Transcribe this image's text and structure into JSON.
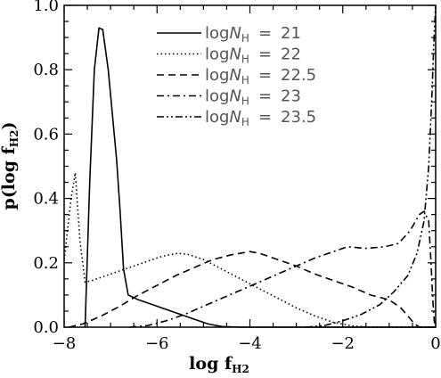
{
  "chart_data": {
    "type": "line",
    "xlabel": "log f",
    "xlabel_sub": "H2",
    "ylabel": "p(log f",
    "ylabel_sub": "H2",
    "ylabel_close": ")",
    "xlim": [
      -8,
      0
    ],
    "ylim": [
      0,
      1.0
    ],
    "x_ticks": [
      -8,
      -6,
      -4,
      -2,
      0
    ],
    "x_tick_labels": [
      "−8",
      "−6",
      "−4",
      "−2",
      "0"
    ],
    "y_ticks": [
      0.0,
      0.2,
      0.4,
      0.6,
      0.8,
      1.0
    ],
    "y_tick_labels": [
      "0.0",
      "0.2",
      "0.4",
      "0.6",
      "0.8",
      "1.0"
    ],
    "grid": false,
    "legend_position": "top-center",
    "series": [
      {
        "name": "21",
        "legend_prefix": "log",
        "legend_var": "N",
        "legend_sub": "H",
        "legend_eq": "=",
        "dash": "solid",
        "points": [
          [
            -7.55,
            0.0
          ],
          [
            -7.45,
            0.45
          ],
          [
            -7.35,
            0.8
          ],
          [
            -7.25,
            0.93
          ],
          [
            -7.17,
            0.925
          ],
          [
            -7.05,
            0.8
          ],
          [
            -6.87,
            0.52
          ],
          [
            -6.8,
            0.37
          ],
          [
            -6.72,
            0.18
          ],
          [
            -6.62,
            0.1
          ],
          [
            -6.4,
            0.085
          ],
          [
            -6.0,
            0.065
          ],
          [
            -5.6,
            0.045
          ],
          [
            -5.2,
            0.025
          ],
          [
            -4.9,
            0.01
          ],
          [
            -4.6,
            0.002
          ],
          [
            -4.2,
            0.0
          ],
          [
            -2.0,
            0.0
          ],
          [
            0.0,
            0.0
          ]
        ]
      },
      {
        "name": "22",
        "legend_prefix": "log",
        "legend_var": "N",
        "legend_sub": "H",
        "legend_eq": "=",
        "dash": "dotted",
        "points": [
          [
            -8.0,
            0.21
          ],
          [
            -7.85,
            0.4
          ],
          [
            -7.76,
            0.48
          ],
          [
            -7.66,
            0.27
          ],
          [
            -7.55,
            0.14
          ],
          [
            -7.4,
            0.145
          ],
          [
            -7.1,
            0.16
          ],
          [
            -6.7,
            0.18
          ],
          [
            -6.3,
            0.2
          ],
          [
            -5.9,
            0.22
          ],
          [
            -5.55,
            0.23
          ],
          [
            -5.3,
            0.225
          ],
          [
            -5.0,
            0.21
          ],
          [
            -4.6,
            0.18
          ],
          [
            -4.2,
            0.15
          ],
          [
            -3.8,
            0.12
          ],
          [
            -3.4,
            0.09
          ],
          [
            -3.0,
            0.06
          ],
          [
            -2.6,
            0.035
          ],
          [
            -2.2,
            0.015
          ],
          [
            -1.8,
            0.004
          ],
          [
            -1.4,
            0.0
          ],
          [
            0.0,
            0.0
          ]
        ]
      },
      {
        "name": "22.5",
        "legend_prefix": "log",
        "legend_var": "N",
        "legend_sub": "H",
        "legend_eq": "=",
        "dash": "dashed",
        "points": [
          [
            -7.9,
            0.0
          ],
          [
            -7.6,
            0.01
          ],
          [
            -7.2,
            0.035
          ],
          [
            -6.8,
            0.065
          ],
          [
            -6.4,
            0.1
          ],
          [
            -6.0,
            0.13
          ],
          [
            -5.6,
            0.16
          ],
          [
            -5.2,
            0.185
          ],
          [
            -4.8,
            0.21
          ],
          [
            -4.4,
            0.225
          ],
          [
            -4.0,
            0.235
          ],
          [
            -3.8,
            0.23
          ],
          [
            -3.4,
            0.21
          ],
          [
            -3.0,
            0.19
          ],
          [
            -2.6,
            0.165
          ],
          [
            -2.2,
            0.145
          ],
          [
            -1.8,
            0.125
          ],
          [
            -1.4,
            0.1
          ],
          [
            -1.0,
            0.085
          ],
          [
            -0.75,
            0.06
          ],
          [
            -0.6,
            0.035
          ],
          [
            -0.45,
            0.01
          ],
          [
            -0.35,
            0.0
          ],
          [
            0.0,
            0.0
          ]
        ]
      },
      {
        "name": "23",
        "legend_prefix": "log",
        "legend_var": "N",
        "legend_sub": "H",
        "legend_eq": "=",
        "dash": "dashdot",
        "points": [
          [
            -6.6,
            0.0
          ],
          [
            -6.2,
            0.005
          ],
          [
            -5.8,
            0.02
          ],
          [
            -5.4,
            0.04
          ],
          [
            -5.0,
            0.065
          ],
          [
            -4.6,
            0.09
          ],
          [
            -4.2,
            0.115
          ],
          [
            -3.8,
            0.14
          ],
          [
            -3.4,
            0.165
          ],
          [
            -3.0,
            0.19
          ],
          [
            -2.6,
            0.215
          ],
          [
            -2.2,
            0.235
          ],
          [
            -1.9,
            0.25
          ],
          [
            -1.5,
            0.245
          ],
          [
            -1.1,
            0.25
          ],
          [
            -0.8,
            0.26
          ],
          [
            -0.55,
            0.3
          ],
          [
            -0.35,
            0.35
          ],
          [
            -0.25,
            0.36
          ],
          [
            -0.15,
            0.33
          ],
          [
            -0.1,
            0.2
          ],
          [
            -0.06,
            0.08
          ],
          [
            -0.03,
            0.02
          ],
          [
            0.0,
            0.0
          ]
        ]
      },
      {
        "name": "23.5",
        "legend_prefix": "log",
        "legend_var": "N",
        "legend_sub": "H",
        "legend_eq": "=",
        "dash": "dashdotdot",
        "points": [
          [
            -2.8,
            0.0
          ],
          [
            -2.4,
            0.005
          ],
          [
            -2.0,
            0.02
          ],
          [
            -1.6,
            0.04
          ],
          [
            -1.2,
            0.07
          ],
          [
            -0.9,
            0.11
          ],
          [
            -0.6,
            0.16
          ],
          [
            -0.4,
            0.23
          ],
          [
            -0.25,
            0.33
          ],
          [
            -0.15,
            0.5
          ],
          [
            -0.08,
            0.72
          ],
          [
            -0.04,
            0.88
          ],
          [
            0.0,
            1.0
          ]
        ]
      }
    ]
  }
}
